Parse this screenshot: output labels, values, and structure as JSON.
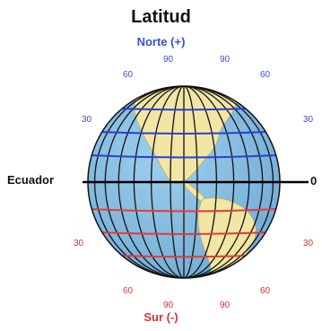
{
  "title": "Latitud",
  "north_label": "Norte (+)",
  "south_label": "Sur (-)",
  "equator_label": "Ecuador",
  "equator_value": "0",
  "north_latitudes": {
    "left_30": "30",
    "right_30": "30",
    "left_60": "60",
    "right_60": "60",
    "top_90_left": "90",
    "top_90_right": "90"
  },
  "south_latitudes": {
    "left_30": "30",
    "right_30": "30",
    "left_60": "60",
    "right_60": "60",
    "bottom_90_left": "90",
    "bottom_90_right": "90"
  },
  "colors": {
    "ocean": "#7ab7dd",
    "land": "#f2e6a5",
    "grid": "#111111",
    "north_line": "#2d3fd0",
    "south_line": "#e43a3a",
    "equator": "#000000"
  }
}
